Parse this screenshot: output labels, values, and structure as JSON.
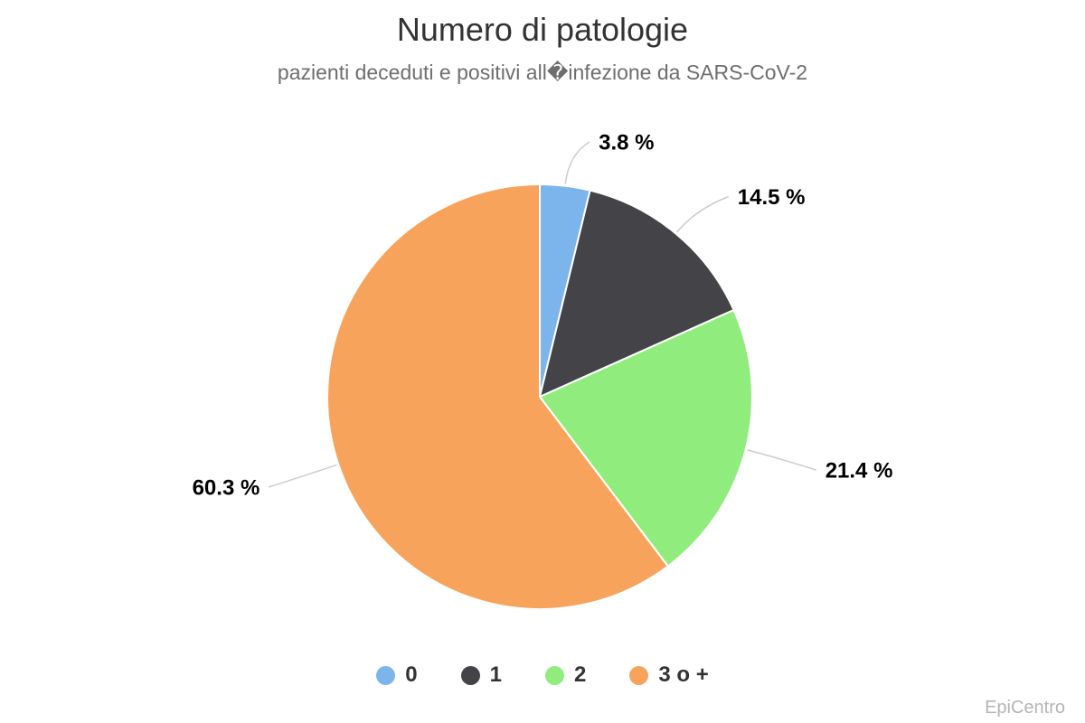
{
  "watermark": "EpiCentro",
  "chart_data": {
    "type": "pie",
    "title": "Numero di patologie",
    "subtitle": "pazienti deceduti e positivi all�infezione da SARS-CoV-2",
    "categories": [
      "0",
      "1",
      "2",
      "3 o +"
    ],
    "values": [
      3.8,
      14.5,
      21.4,
      60.3
    ],
    "labels": [
      "3.8 %",
      "14.5 %",
      "21.4 %",
      "60.3 %"
    ],
    "colors": [
      "#7cb5ec",
      "#434348",
      "#90ed7d",
      "#f7a35c"
    ],
    "unit": "%",
    "start_angle_deg": 0,
    "direction": "clockwise",
    "legend_position": "bottom",
    "connector_color": "#cccccc",
    "label_color": "#000000",
    "slice_border_color": "#ffffff"
  }
}
